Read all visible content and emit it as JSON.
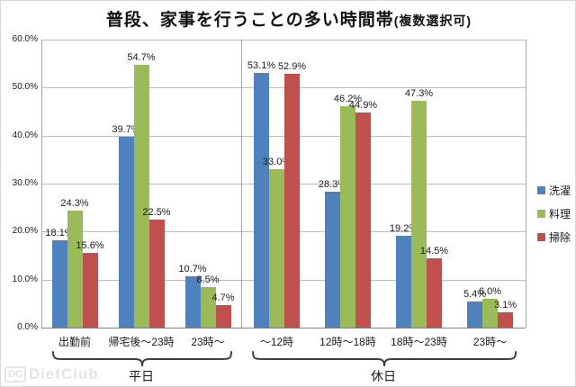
{
  "title": {
    "main": "普段、家事を行うことの多い時間帯",
    "paren": "(複数選択可)"
  },
  "watermark": {
    "logo": "DC",
    "text": "DietClub"
  },
  "chart_data": {
    "type": "bar",
    "title": "普段、家事を行うことの多い時間帯(複数選択可)",
    "xlabel": "",
    "ylabel": "",
    "ylim": [
      0,
      60
    ],
    "ytick_step": 10,
    "ytick_labels": [
      "60.0%",
      "50.0%",
      "40.0%",
      "30.0%",
      "20.0%",
      "10.0%",
      "0.0%"
    ],
    "grid": true,
    "legend_position": "right",
    "value_label_suffix": "%",
    "sections": [
      {
        "label": "平日",
        "categories": [
          "出勤前",
          "帰宅後～23時",
          "23時～"
        ]
      },
      {
        "label": "休日",
        "categories": [
          "～12時",
          "12時～18時",
          "18時～23時",
          "23時～"
        ]
      }
    ],
    "categories": [
      "出勤前",
      "帰宅後～23時",
      "23時～",
      "～12時",
      "12時～18時",
      "18時～23時",
      "23時～"
    ],
    "series": [
      {
        "name": "洗濯",
        "color": "#4F81BD",
        "values": [
          18.1,
          39.7,
          10.7,
          53.1,
          28.3,
          19.2,
          5.4
        ]
      },
      {
        "name": "料理",
        "color": "#9BBB59",
        "values": [
          24.3,
          54.7,
          8.5,
          33.0,
          46.2,
          47.3,
          6.0
        ]
      },
      {
        "name": "掃除",
        "color": "#C0504D",
        "values": [
          15.6,
          22.5,
          4.7,
          52.9,
          44.9,
          14.5,
          3.1
        ]
      }
    ]
  }
}
